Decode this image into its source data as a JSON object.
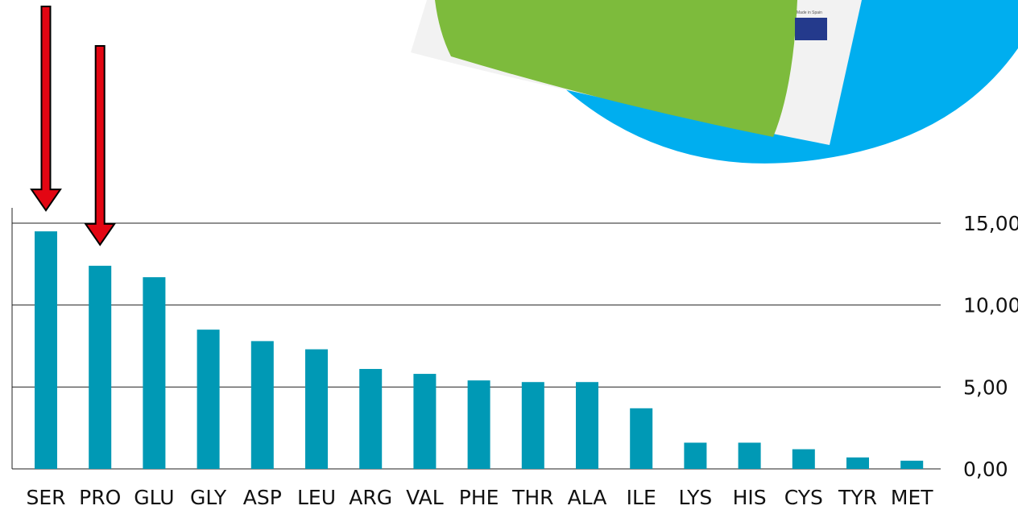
{
  "colors": {
    "bar": "#0099B5",
    "arrow": "#E30613",
    "arrow_outline": "#000000",
    "grid": "#222222",
    "package_circle": "#00AEEF",
    "package_green": "#7DBB3C",
    "package_white": "#F2F2F2",
    "eu_flag": "#243A8C"
  },
  "decorations": {
    "arrows": [
      "SER",
      "PRO"
    ],
    "package_icon": "product-package-image"
  },
  "chart_data": {
    "type": "bar",
    "categories": [
      "SER",
      "PRO",
      "GLU",
      "GLY",
      "ASP",
      "LEU",
      "ARG",
      "VAL",
      "PHE",
      "THR",
      "ALA",
      "ILE",
      "LYS",
      "HIS",
      "CYS",
      "TYR",
      "MET"
    ],
    "values": [
      14.5,
      12.4,
      11.7,
      8.5,
      7.8,
      7.3,
      6.1,
      5.8,
      5.4,
      5.3,
      5.3,
      3.7,
      1.6,
      1.6,
      1.2,
      0.7,
      0.5
    ],
    "yticks": [
      "0,00",
      "5,00",
      "10,00",
      "15,00"
    ],
    "ylim": [
      0,
      15
    ],
    "grid": true,
    "y_axis_position": "right",
    "title": "",
    "xlabel": "",
    "ylabel": ""
  }
}
